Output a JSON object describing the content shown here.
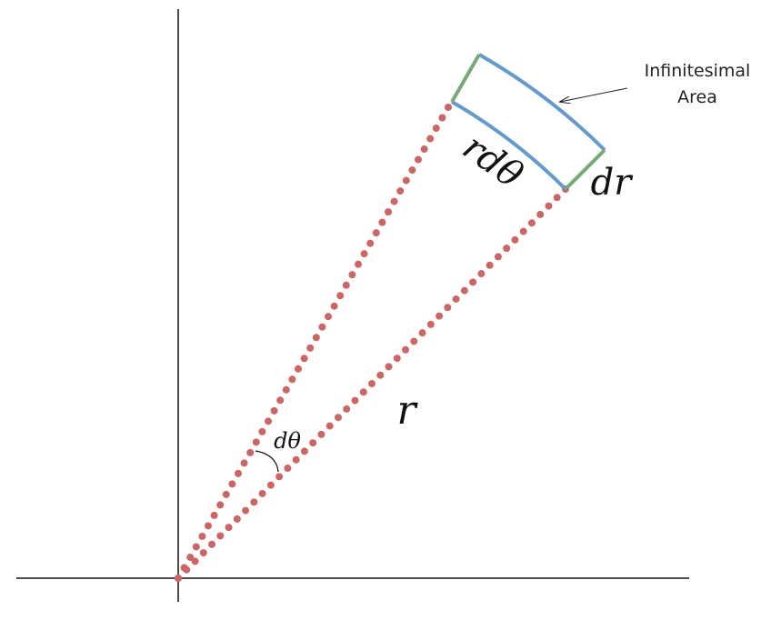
{
  "annotation": {
    "lines": [
      "Infinitesimal",
      "Area"
    ]
  },
  "labels": {
    "arc_length": "rdθ",
    "radial_width": "dr",
    "radius": "r",
    "angle": "dθ"
  }
}
